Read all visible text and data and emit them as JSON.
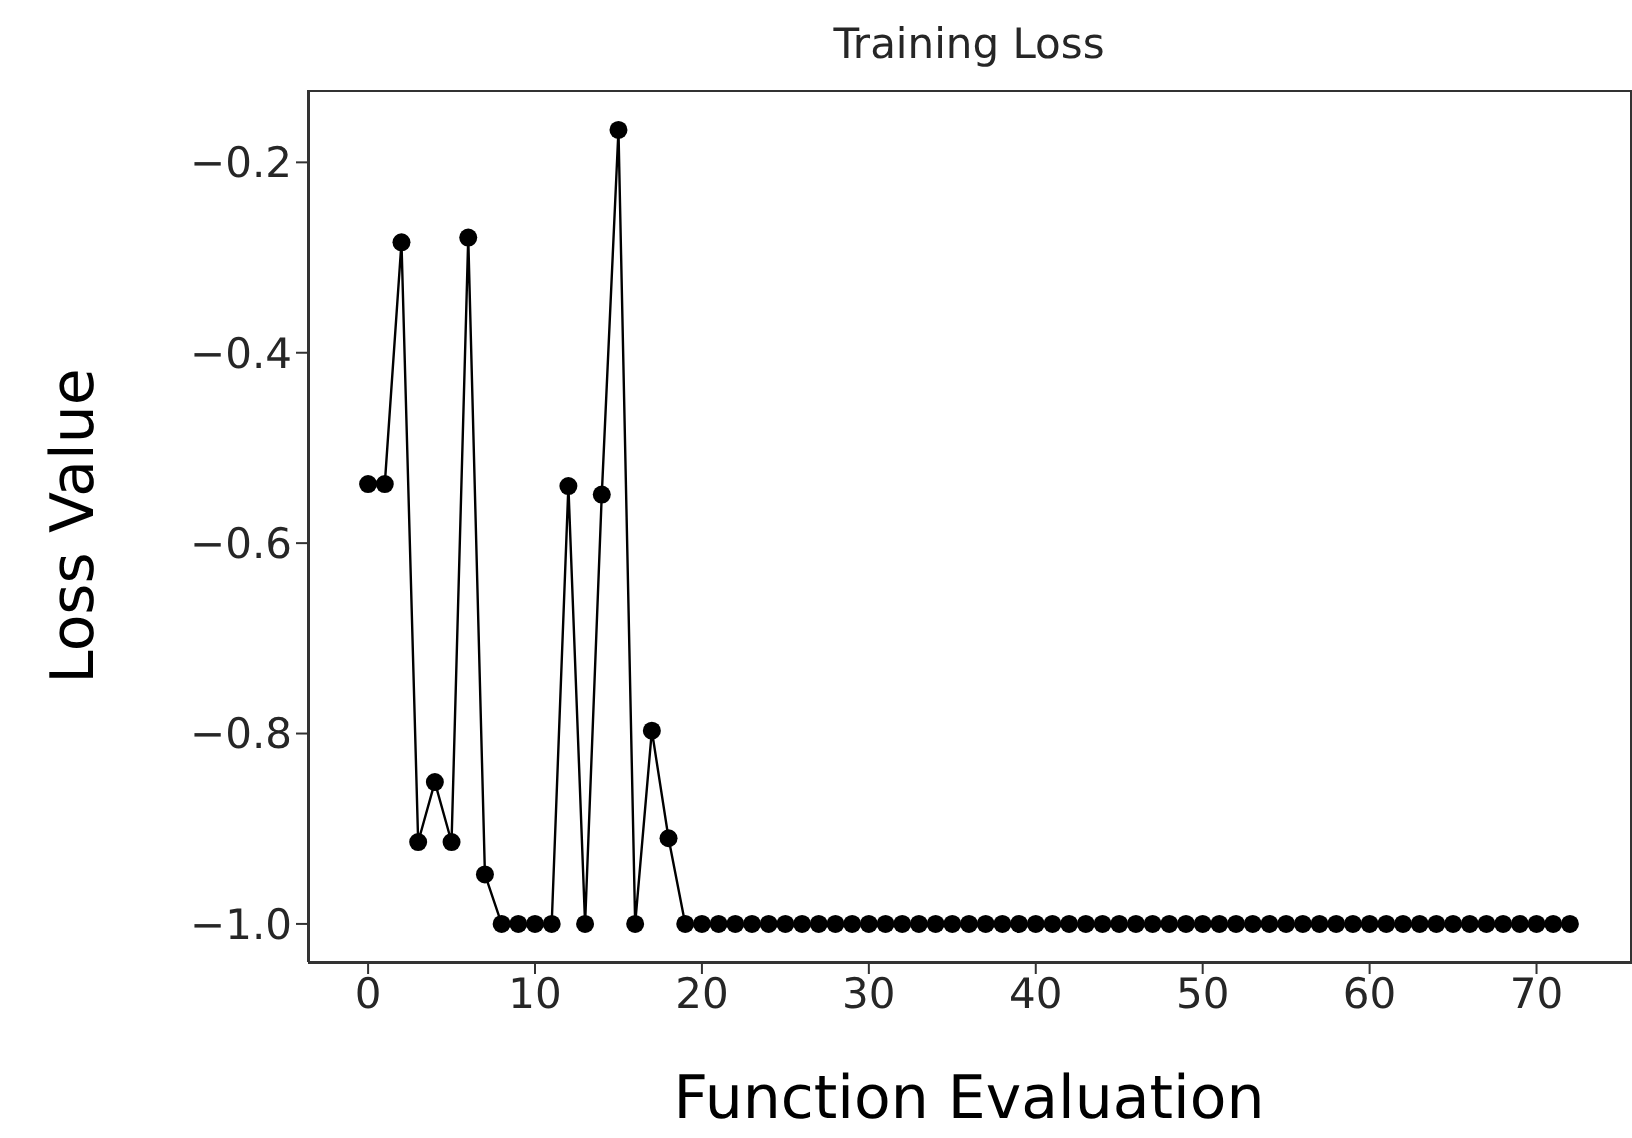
{
  "chart_data": {
    "type": "line",
    "title": "Training Loss",
    "xlabel": "Function Evaluation",
    "ylabel": "Loss Value",
    "x": [
      0,
      1,
      2,
      3,
      4,
      5,
      6,
      7,
      8,
      9,
      10,
      11,
      12,
      13,
      14,
      15,
      16,
      17,
      18,
      19,
      20,
      21,
      22,
      23,
      24,
      25,
      26,
      27,
      28,
      29,
      30,
      31,
      32,
      33,
      34,
      35,
      36,
      37,
      38,
      39,
      40,
      41,
      42,
      43,
      44,
      45,
      46,
      47,
      48,
      49,
      50,
      51,
      52,
      53,
      54,
      55,
      56,
      57,
      58,
      59,
      60,
      61,
      62,
      63,
      64,
      65,
      66,
      67,
      68,
      69,
      70,
      71,
      72
    ],
    "series": [
      {
        "color": "#000000",
        "values": [
          -0.538,
          -0.538,
          -0.284,
          -0.914,
          -0.851,
          -0.914,
          -0.279,
          -0.948,
          -1,
          -1,
          -1,
          -1,
          -0.54,
          -1,
          -0.549,
          -0.166,
          -1,
          -0.797,
          -0.91,
          -1,
          -1,
          -1,
          -1,
          -1,
          -1,
          -1,
          -1,
          -1,
          -1,
          -1,
          -1,
          -1,
          -1,
          -1,
          -1,
          -1,
          -1,
          -1,
          -1,
          -1,
          -1,
          -1,
          -1,
          -1,
          -1,
          -1,
          -1,
          -1,
          -1,
          -1,
          -1,
          -1,
          -1,
          -1,
          -1,
          -1,
          -1,
          -1,
          -1,
          -1,
          -1,
          -1,
          -1,
          -1,
          -1,
          -1,
          -1,
          -1,
          -1,
          -1,
          -1,
          -1,
          -1
        ]
      }
    ],
    "xlim": [
      -3.6,
      75.6
    ],
    "xticks": [
      0,
      10,
      20,
      30,
      40,
      50,
      60,
      70
    ],
    "ylim": [
      -1.04,
      -0.124
    ],
    "yticks": [
      {
        "value": -1.0,
        "label": "−1.0"
      },
      {
        "value": -0.8,
        "label": "−0.8"
      },
      {
        "value": -0.6,
        "label": "−0.6"
      },
      {
        "value": -0.4,
        "label": "−0.4"
      },
      {
        "value": -0.2,
        "label": "−0.2"
      }
    ],
    "marker": "circle",
    "line_style": "solid",
    "grid": false,
    "legend": false
  }
}
